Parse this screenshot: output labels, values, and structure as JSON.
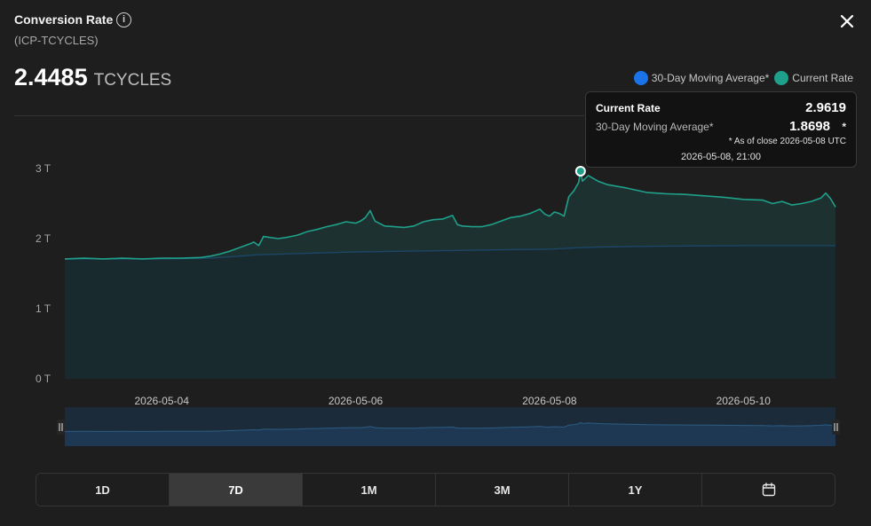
{
  "header": {
    "title": "Conversion Rate",
    "subtitle": "(ICP-TCYCLES)",
    "price": "2.4485",
    "unit": "TCYCLES"
  },
  "legend": {
    "ma_label": "30-Day Moving Average*",
    "current_label": "Current Rate",
    "ma_color": "#1a73e8",
    "current_color": "#1fa08a"
  },
  "tooltip": {
    "current_label": "Current Rate",
    "current_value": "2.9619",
    "ma_label": "30-Day Moving Average*",
    "ma_value": "1.8698",
    "star": "*",
    "note": "* As of close 2026-05-08 UTC",
    "timestamp": "2026-05-08, 21:00"
  },
  "range_buttons": [
    {
      "label": "1D",
      "active": false
    },
    {
      "label": "7D",
      "active": true
    },
    {
      "label": "1M",
      "active": false
    },
    {
      "label": "3M",
      "active": false
    },
    {
      "label": "1Y",
      "active": false
    }
  ],
  "icons": {
    "close": "close-icon",
    "info": "info-icon",
    "calendar": "calendar-icon",
    "handle": "drag-handle-icon"
  },
  "chart_data": {
    "type": "area",
    "y_ticks": [
      "0 T",
      "1 T",
      "2 T",
      "3 T"
    ],
    "ylim": [
      0,
      3
    ],
    "x_ticks": [
      {
        "label": "2026-05-04",
        "x": 1.0
      },
      {
        "label": "2026-05-06",
        "x": 3.0
      },
      {
        "label": "2026-05-08",
        "x": 5.0
      },
      {
        "label": "2026-05-10",
        "x": 7.0
      }
    ],
    "xlim": [
      0.0,
      7.95
    ],
    "highlight": {
      "x": 5.32,
      "y": 2.9619
    },
    "series": [
      {
        "name": "Current Rate",
        "color": "#1fa08a",
        "points": [
          [
            0.0,
            1.71
          ],
          [
            0.2,
            1.72
          ],
          [
            0.4,
            1.71
          ],
          [
            0.6,
            1.72
          ],
          [
            0.8,
            1.71
          ],
          [
            1.0,
            1.72
          ],
          [
            1.2,
            1.72
          ],
          [
            1.4,
            1.73
          ],
          [
            1.5,
            1.75
          ],
          [
            1.6,
            1.78
          ],
          [
            1.7,
            1.82
          ],
          [
            1.8,
            1.87
          ],
          [
            1.9,
            1.92
          ],
          [
            1.95,
            1.95
          ],
          [
            2.0,
            1.9
          ],
          [
            2.05,
            2.03
          ],
          [
            2.1,
            2.02
          ],
          [
            2.2,
            2.0
          ],
          [
            2.3,
            2.02
          ],
          [
            2.4,
            2.05
          ],
          [
            2.5,
            2.1
          ],
          [
            2.6,
            2.13
          ],
          [
            2.7,
            2.17
          ],
          [
            2.8,
            2.2
          ],
          [
            2.9,
            2.24
          ],
          [
            3.0,
            2.22
          ],
          [
            3.05,
            2.25
          ],
          [
            3.1,
            2.3
          ],
          [
            3.15,
            2.4
          ],
          [
            3.2,
            2.25
          ],
          [
            3.3,
            2.18
          ],
          [
            3.4,
            2.17
          ],
          [
            3.5,
            2.16
          ],
          [
            3.6,
            2.18
          ],
          [
            3.7,
            2.24
          ],
          [
            3.8,
            2.27
          ],
          [
            3.9,
            2.28
          ],
          [
            4.0,
            2.33
          ],
          [
            4.05,
            2.2
          ],
          [
            4.1,
            2.18
          ],
          [
            4.2,
            2.17
          ],
          [
            4.3,
            2.17
          ],
          [
            4.4,
            2.2
          ],
          [
            4.5,
            2.25
          ],
          [
            4.6,
            2.3
          ],
          [
            4.7,
            2.32
          ],
          [
            4.8,
            2.36
          ],
          [
            4.9,
            2.42
          ],
          [
            4.95,
            2.35
          ],
          [
            5.0,
            2.32
          ],
          [
            5.05,
            2.38
          ],
          [
            5.1,
            2.36
          ],
          [
            5.15,
            2.32
          ],
          [
            5.2,
            2.6
          ],
          [
            5.25,
            2.68
          ],
          [
            5.3,
            2.8
          ],
          [
            5.32,
            2.96
          ],
          [
            5.34,
            2.82
          ],
          [
            5.4,
            2.9
          ],
          [
            5.5,
            2.82
          ],
          [
            5.6,
            2.77
          ],
          [
            5.8,
            2.72
          ],
          [
            6.0,
            2.66
          ],
          [
            6.2,
            2.64
          ],
          [
            6.4,
            2.63
          ],
          [
            6.6,
            2.61
          ],
          [
            6.8,
            2.59
          ],
          [
            7.0,
            2.56
          ],
          [
            7.2,
            2.55
          ],
          [
            7.3,
            2.5
          ],
          [
            7.4,
            2.53
          ],
          [
            7.5,
            2.48
          ],
          [
            7.6,
            2.5
          ],
          [
            7.7,
            2.53
          ],
          [
            7.8,
            2.58
          ],
          [
            7.85,
            2.65
          ],
          [
            7.9,
            2.57
          ],
          [
            7.95,
            2.45
          ]
        ]
      },
      {
        "name": "30-Day Moving Average*",
        "color": "#1a73e8",
        "points": [
          [
            0.0,
            1.71
          ],
          [
            1.0,
            1.71
          ],
          [
            1.5,
            1.72
          ],
          [
            2.0,
            1.77
          ],
          [
            2.5,
            1.79
          ],
          [
            3.0,
            1.81
          ],
          [
            3.5,
            1.82
          ],
          [
            4.0,
            1.83
          ],
          [
            4.5,
            1.84
          ],
          [
            5.0,
            1.85
          ],
          [
            5.3,
            1.87
          ],
          [
            5.5,
            1.88
          ],
          [
            6.0,
            1.89
          ],
          [
            7.0,
            1.9
          ],
          [
            7.95,
            1.9
          ]
        ]
      }
    ]
  }
}
